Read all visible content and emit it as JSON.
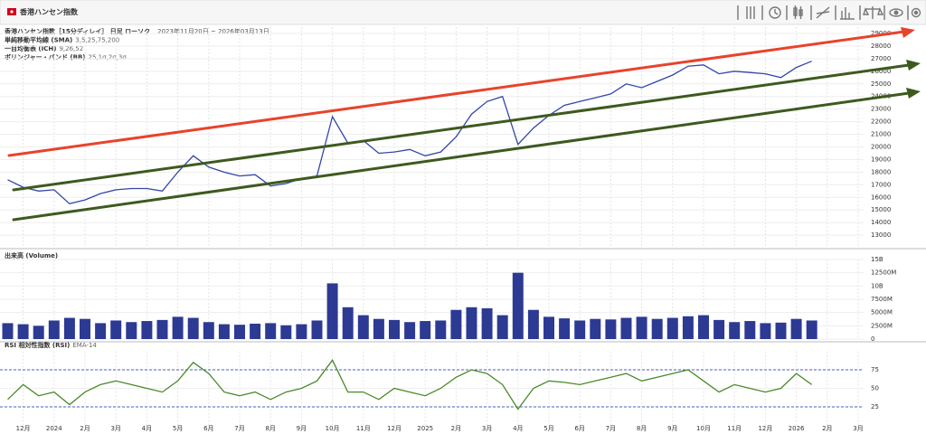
{
  "header": {
    "title": "香港ハンセン指数"
  },
  "chart_data": [
    {
      "type": "line",
      "title": "香港ハンセン指数［15分ディレイ］ 日足 ローソク",
      "subtitle": "2023年11月20日 ~ 2026年03月13日",
      "indicators": [
        {
          "name": "単純移動平均線 (SMA)",
          "params": "3,5,25,75,200"
        },
        {
          "name": "一目均衡表 (ICH)",
          "params": "9,26,52"
        },
        {
          "name": "ボリンジャー・バンド (BB)",
          "params": "25,1σ,2σ,3σ"
        }
      ],
      "color": "#3346a8",
      "values": [
        17400,
        16800,
        16500,
        16600,
        15500,
        15800,
        16300,
        16600,
        16700,
        16700,
        16500,
        18000,
        19300,
        18400,
        18000,
        17700,
        17800,
        16900,
        17100,
        17500,
        17700,
        22400,
        20300,
        20500,
        19500,
        19600,
        19800,
        19300,
        19600,
        20800,
        22600,
        23600,
        24000,
        20200,
        21500,
        22500,
        23300,
        23600,
        23900,
        24200,
        25000,
        24700,
        25200,
        25700,
        26400,
        26500,
        25800,
        26000,
        25900,
        25800,
        25500,
        26300,
        26800,
        null,
        null,
        null,
        null
      ],
      "ylim": [
        12150,
        29500
      ],
      "yticks": [
        13000,
        14000,
        15000,
        16000,
        17000,
        18000,
        19000,
        20000,
        21000,
        22000,
        23000,
        24000,
        25000,
        26000,
        27000,
        28000,
        29000
      ],
      "grid": true
    },
    {
      "type": "bar",
      "title": "出来高 (Volume)",
      "color": "#2c3a94",
      "values": [
        3000000000,
        2800000000,
        2500000000,
        3500000000,
        4000000000,
        3800000000,
        3000000000,
        3500000000,
        3200000000,
        3400000000,
        3600000000,
        4200000000,
        4000000000,
        3200000000,
        2800000000,
        2700000000,
        2900000000,
        3000000000,
        2600000000,
        2800000000,
        3500000000,
        10500000000,
        6000000000,
        4500000000,
        3800000000,
        3600000000,
        3200000000,
        3400000000,
        3500000000,
        5500000000,
        6000000000,
        5800000000,
        4500000000,
        12500000000,
        5500000000,
        4200000000,
        3900000000,
        3500000000,
        3800000000,
        3700000000,
        4000000000,
        4200000000,
        3800000000,
        4000000000,
        4300000000,
        4500000000,
        3600000000,
        3200000000,
        3400000000,
        3000000000,
        3100000000,
        3800000000,
        3500000000,
        null,
        null,
        null,
        null
      ],
      "ylim": [
        0,
        15000000000
      ],
      "yticks": [
        0,
        {
          "value": 2500000000,
          "label": "2500M"
        },
        {
          "value": 5000000000,
          "label": "5000M"
        },
        {
          "value": 7500000000,
          "label": "7500M"
        },
        {
          "value": 10000000000,
          "label": "10B"
        },
        {
          "value": 12500000000,
          "label": "12500M"
        },
        {
          "value": 15000000000,
          "label": "15B"
        }
      ],
      "grid": true
    },
    {
      "type": "line",
      "title": "RSI 相対性指数 (RSI)",
      "subtitle": "EMA-14",
      "color": "#4a8a2a",
      "categories": [
        null,
        "12月",
        null,
        "2024",
        null,
        "2月",
        null,
        "3月",
        null,
        "4月",
        null,
        "5月",
        null,
        "6月",
        null,
        "7月",
        null,
        "8月",
        null,
        "9月",
        null,
        "10月",
        null,
        "11月",
        null,
        "12月",
        null,
        "2025",
        null,
        "2月",
        null,
        "3月",
        null,
        "4月",
        null,
        "5月",
        null,
        "6月",
        null,
        "7月",
        null,
        "8月",
        null,
        "9月",
        null,
        "10月",
        null,
        "11月",
        null,
        "12月",
        null,
        "2026",
        null,
        "2月",
        null,
        "3月",
        null
      ],
      "values": [
        35,
        55,
        40,
        45,
        28,
        45,
        55,
        60,
        55,
        50,
        45,
        60,
        85,
        70,
        45,
        40,
        45,
        35,
        45,
        50,
        60,
        88,
        45,
        45,
        35,
        50,
        45,
        40,
        50,
        65,
        75,
        70,
        55,
        22,
        50,
        60,
        58,
        55,
        60,
        65,
        70,
        60,
        65,
        70,
        75,
        60,
        45,
        55,
        50,
        45,
        50,
        70,
        55,
        null,
        null,
        null,
        null
      ],
      "ylim": [
        0,
        100
      ],
      "yticks": [
        25,
        50,
        75
      ],
      "reference_lines": [
        25,
        75
      ],
      "grid": true
    }
  ]
}
